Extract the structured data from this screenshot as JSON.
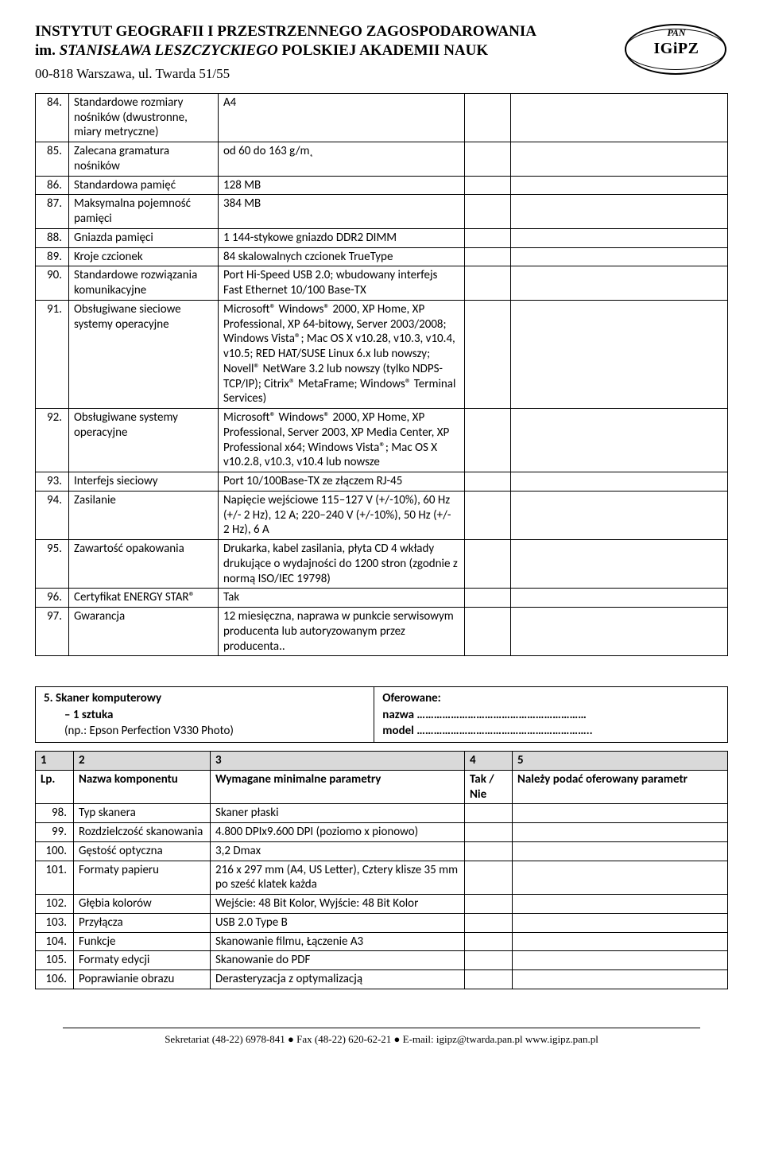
{
  "header": {
    "line1": "INSTYTUT GEOGRAFII I PRZESTRZENNEGO ZAGOSPODAROWANIA",
    "line2_prefix": "im. ",
    "line2_italic": "STANISŁAWA LESZCZYCKIEGO",
    "line2_suffix": "  POLSKIEJ AKADEMII NAUK",
    "addr": "00-818 Warszawa, ul. Twarda 51/55",
    "logo_top": "PAN",
    "logo_main": "IGiPZ"
  },
  "table1": {
    "rows": [
      {
        "n": "84.",
        "label": "Standardowe rozmiary nośników (dwustronne, miary metryczne)",
        "val": "A4"
      },
      {
        "n": "85.",
        "label": "Zalecana gramatura nośników",
        "val": "od 60 do 163 g/m˛"
      },
      {
        "n": "86.",
        "label": "Standardowa pamięć",
        "val": "128 MB"
      },
      {
        "n": "87.",
        "label": "Maksymalna pojemność pamięci",
        "val": "384 MB"
      },
      {
        "n": "88.",
        "label": "Gniazda pamięci",
        "val": "1 144-stykowe gniazdo DDR2 DIMM"
      },
      {
        "n": "89.",
        "label": "Kroje czcionek",
        "val": "84 skalowalnych czcionek TrueType"
      },
      {
        "n": "90.",
        "label": "Standardowe rozwiązania komunikacyjne",
        "val": "Port Hi-Speed USB 2.0; wbudowany interfejs Fast Ethernet 10/100 Base-TX"
      },
      {
        "n": "91.",
        "label": "Obsługiwane sieciowe systemy operacyjne",
        "val": "Microsoft® Windows® 2000, XP Home, XP Professional, XP 64-bitowy, Server 2003/2008; Windows Vista®; Mac OS X v10.28, v10.3, v10.4, v10.5; RED HAT/SUSE Linux 6.x lub nowszy; Novell® NetWare 3.2 lub nowszy (tylko NDPS-TCP/IP); Citrix® MetaFrame; Windows® Terminal Services)"
      },
      {
        "n": "92.",
        "label": "Obsługiwane systemy operacyjne",
        "val": "Microsoft® Windows® 2000, XP Home, XP Professional, Server 2003, XP Media Center, XP Professional x64; Windows Vista®; Mac OS X v10.2.8, v10.3, v10.4 lub nowsze"
      },
      {
        "n": "93.",
        "label": "Interfejs sieciowy",
        "val": "Port 10/100Base-TX ze złączem RJ-45"
      },
      {
        "n": "94.",
        "label": "Zasilanie",
        "val": "Napięcie wejściowe 115–127 V (+/-10%), 60 Hz (+/- 2 Hz), 12 A; 220–240 V (+/-10%), 50 Hz (+/- 2 Hz), 6 A"
      },
      {
        "n": "95.",
        "label": "Zawartość opakowania",
        "val": "Drukarka, kabel zasilania, płyta CD 4 wkłady drukujące o wydajności do 1200 stron (zgodnie z normą ISO/IEC 19798)"
      },
      {
        "n": "96.",
        "label": "Certyfikat ENERGY STAR®",
        "val": "Tak"
      },
      {
        "n": "97.",
        "label": "Gwarancja",
        "val": "12 miesięczna, naprawa w punkcie serwisowym producenta lub autoryzowanym przez producenta.."
      }
    ]
  },
  "section": {
    "left_title": "5.   Skaner komputerowy",
    "left_l2": "– 1 sztuka",
    "left_l3": "(np.: Epson Perfection V330 Photo)",
    "right_l1": "Oferowane:",
    "right_l2": "nazwa ……………………………………………………",
    "right_l3": "model …………………………………………………….."
  },
  "table2": {
    "head": {
      "c1": "1",
      "c2": "2",
      "c3": "3",
      "c4": "4",
      "c5": "5"
    },
    "head2": {
      "c1": "Lp.",
      "c2": "Nazwa komponentu",
      "c3": "Wymagane minimalne parametry",
      "c4": "Tak / Nie",
      "c5": "Należy podać oferowany parametr"
    },
    "rows": [
      {
        "n": "98.",
        "label": "Typ skanera",
        "val": "Skaner płaski"
      },
      {
        "n": "99.",
        "label": "Rozdzielczość skanowania",
        "val": "4.800 DPIx9.600 DPI (poziomo x pionowo)"
      },
      {
        "n": "100.",
        "label": "Gęstość optyczna",
        "val": "3,2 Dmax"
      },
      {
        "n": "101.",
        "label": "Formaty papieru",
        "val": "216 x 297 mm (A4, US Letter), Cztery klisze 35 mm po sześć klatek każda"
      },
      {
        "n": "102.",
        "label": "Głębia kolorów",
        "val": "Wejście: 48 Bit Kolor, Wyjście: 48 Bit Kolor"
      },
      {
        "n": "103.",
        "label": "Przyłącza",
        "val": "USB 2.0 Type B"
      },
      {
        "n": "104.",
        "label": "Funkcje",
        "val": "Skanowanie filmu, Łączenie A3"
      },
      {
        "n": "105.",
        "label": "Formaty edycji",
        "val": "Skanowanie do PDF"
      },
      {
        "n": "106.",
        "label": "Poprawianie obrazu",
        "val": "Derasteryzacja z optymalizacją"
      }
    ]
  },
  "footer": {
    "text": "Sekretariat (48-22) 6978-841 ● Fax (48-22) 620-62-21 ● E-mail: igipz@twarda.pan.pl www.igipz.pan.pl"
  }
}
